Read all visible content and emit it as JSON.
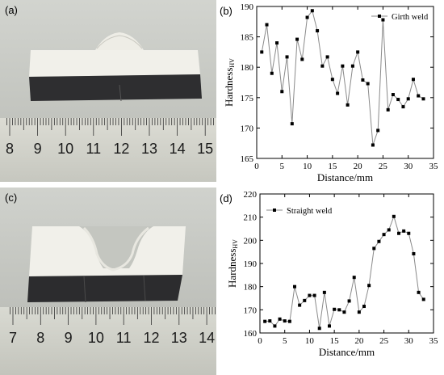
{
  "panels": {
    "a": "(a)",
    "b": "(b)",
    "c": "(c)",
    "d": "(d)"
  },
  "ruler_a": {
    "numbers": [
      "8",
      "9",
      "10",
      "11",
      "12",
      "13",
      "14",
      "15"
    ]
  },
  "ruler_c": {
    "numbers": [
      "7",
      "8",
      "9",
      "10",
      "11",
      "12",
      "13",
      "14"
    ]
  },
  "colors": {
    "line": "#8a8a8a",
    "marker": "#000000",
    "axis": "#000000"
  },
  "chart_data": [
    {
      "type": "line",
      "xlabel": "Distance/mm",
      "ylabel": "Hardness",
      "ylabel_sub": "HV",
      "xlim": [
        0,
        35
      ],
      "ylim": [
        165,
        190
      ],
      "xticks": [
        0,
        5,
        10,
        15,
        20,
        25,
        30,
        35
      ],
      "yticks": [
        165,
        170,
        175,
        180,
        185,
        190
      ],
      "legend_position": "top-right",
      "series": [
        {
          "name": "Girth weld",
          "x": [
            1,
            2,
            3,
            4,
            5,
            6,
            7,
            8,
            9,
            10,
            11,
            12,
            13,
            14,
            15,
            16,
            17,
            18,
            19,
            20,
            21,
            22,
            23,
            24,
            25,
            26,
            27,
            28,
            29,
            30,
            31,
            32,
            33
          ],
          "y": [
            182.5,
            187,
            179,
            184,
            176,
            181.7,
            170.7,
            184.6,
            181.3,
            188.2,
            189.3,
            186,
            180.2,
            181.7,
            178,
            175.7,
            180.2,
            173.8,
            180.2,
            182.5,
            177.9,
            177.3,
            167.2,
            169.6,
            187.8,
            173,
            175.5,
            174.7,
            173.5,
            174.8,
            178,
            175.3,
            174.8
          ]
        }
      ]
    },
    {
      "type": "line",
      "xlabel": "Distance/mm",
      "ylabel": "Hardness",
      "ylabel_sub": "HV",
      "xlim": [
        0,
        35
      ],
      "ylim": [
        160,
        220
      ],
      "xticks": [
        0,
        5,
        10,
        15,
        20,
        25,
        30,
        35
      ],
      "yticks": [
        160,
        170,
        180,
        190,
        200,
        210,
        220
      ],
      "legend_position": "top-left",
      "series": [
        {
          "name": "Straight weld",
          "x": [
            1,
            2,
            3,
            4,
            5,
            6,
            7,
            8,
            9,
            10,
            11,
            12,
            13,
            14,
            15,
            16,
            17,
            18,
            19,
            20,
            21,
            22,
            23,
            24,
            25,
            26,
            27,
            28,
            29,
            30,
            31,
            32,
            33
          ],
          "y": [
            165,
            165.2,
            163,
            166,
            165.2,
            165,
            180,
            172,
            174,
            176.2,
            176.2,
            162,
            177.5,
            163,
            170.2,
            170,
            169,
            173.8,
            184,
            169,
            171.5,
            180.5,
            196.5,
            199.5,
            202.5,
            204.5,
            210.3,
            203,
            204,
            203,
            194.2,
            177.5,
            174.5
          ]
        }
      ]
    }
  ]
}
